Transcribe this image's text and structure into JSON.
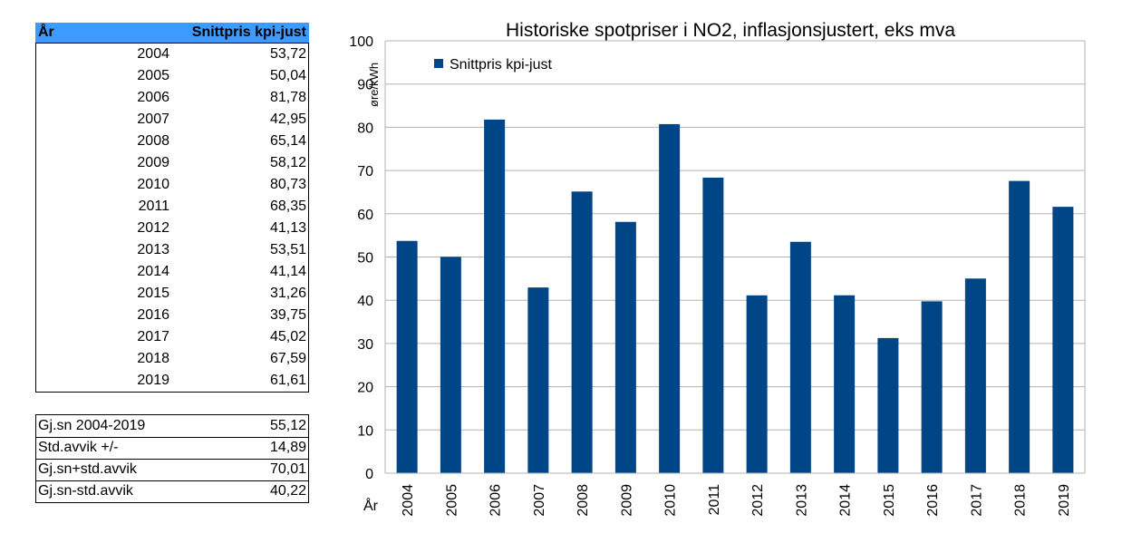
{
  "table": {
    "header_year": "År",
    "header_value": "Snittpris kpi-just",
    "rows": [
      {
        "year": "2004",
        "value": "53,72"
      },
      {
        "year": "2005",
        "value": "50,04"
      },
      {
        "year": "2006",
        "value": "81,78"
      },
      {
        "year": "2007",
        "value": "42,95"
      },
      {
        "year": "2008",
        "value": "65,14"
      },
      {
        "year": "2009",
        "value": "58,12"
      },
      {
        "year": "2010",
        "value": "80,73"
      },
      {
        "year": "2011",
        "value": "68,35"
      },
      {
        "year": "2012",
        "value": "41,13"
      },
      {
        "year": "2013",
        "value": "53,51"
      },
      {
        "year": "2014",
        "value": "41,14"
      },
      {
        "year": "2015",
        "value": "31,26"
      },
      {
        "year": "2016",
        "value": "39,75"
      },
      {
        "year": "2017",
        "value": "45,02"
      },
      {
        "year": "2018",
        "value": "67,59"
      },
      {
        "year": "2019",
        "value": "61,61"
      }
    ]
  },
  "stats": [
    {
      "label": "Gj.sn 2004-2019",
      "value": "55,12"
    },
    {
      "label": "Std.avvik +/-",
      "value": "14,89"
    },
    {
      "label": "Gj.sn+std.avvik",
      "value": "70,01"
    },
    {
      "label": "Gj.sn-std.avvik",
      "value": "40,22"
    }
  ],
  "colors": {
    "bar": "#004586",
    "header_bg": "#3d9bff",
    "grid": "#b3b3b3"
  },
  "chart_data": {
    "type": "bar",
    "title": "Historiske spotpriser i NO2, inflasjonsjustert, eks mva",
    "xlabel": "År",
    "ylabel": "øre/kWh",
    "categories": [
      "2004",
      "2005",
      "2006",
      "2007",
      "2008",
      "2009",
      "2010",
      "2011",
      "2012",
      "2013",
      "2014",
      "2015",
      "2016",
      "2017",
      "2018",
      "2019"
    ],
    "series": [
      {
        "name": "Snittpris kpi-just",
        "values": [
          53.72,
          50.04,
          81.78,
          42.95,
          65.14,
          58.12,
          80.73,
          68.35,
          41.13,
          53.51,
          41.14,
          31.26,
          39.75,
          45.02,
          67.59,
          61.61
        ]
      }
    ],
    "ylim": [
      0,
      100
    ],
    "yticks": [
      0,
      10,
      20,
      30,
      40,
      50,
      60,
      70,
      80,
      90,
      100
    ],
    "grid": true,
    "legend_position": "top-left"
  }
}
